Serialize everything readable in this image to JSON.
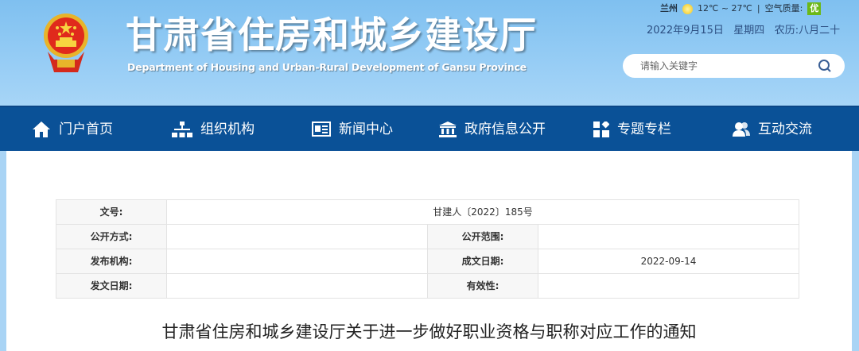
{
  "header": {
    "title": "甘肃省住房和城乡建设厅",
    "subtitle": "Department of Housing and Urban-Rural Development of Gansu Province",
    "weather": {
      "city": "兰州",
      "temp": "12℃ ~ 27℃",
      "separator": "|",
      "aq_label": "空气质量:",
      "aq_value": "优",
      "aq_color": "#6cb818",
      "icon": "sun-icon"
    },
    "date": "2022年9月15日   星期四   农历:八月二十",
    "search": {
      "placeholder": "请输入关键字",
      "icon": "search-icon"
    }
  },
  "nav": {
    "items": [
      {
        "label": "门户首页",
        "icon": "home-icon"
      },
      {
        "label": "组织机构",
        "icon": "org-chart-icon"
      },
      {
        "label": "新闻中心",
        "icon": "newspaper-icon"
      },
      {
        "label": "政府信息公开",
        "icon": "government-building-icon"
      },
      {
        "label": "专题专栏",
        "icon": "grid-icon"
      },
      {
        "label": "互动交流",
        "icon": "users-icon"
      }
    ],
    "color": "#0a5197"
  },
  "meta": {
    "doc_no_label": "文号:",
    "doc_no": "甘建人〔2022〕185号",
    "open_mode_label": "公开方式:",
    "open_mode": "",
    "open_scope_label": "公开范围:",
    "open_scope": "",
    "issuer_label": "发布机构:",
    "issuer": "",
    "written_date_label": "成文日期:",
    "written_date": "2022-09-14",
    "issue_date_label": "发文日期:",
    "issue_date": "",
    "validity_label": "有效性:",
    "validity": ""
  },
  "document": {
    "title": "甘肃省住房和城乡建设厅关于进一步做好职业资格与职称对应工作的通知"
  }
}
